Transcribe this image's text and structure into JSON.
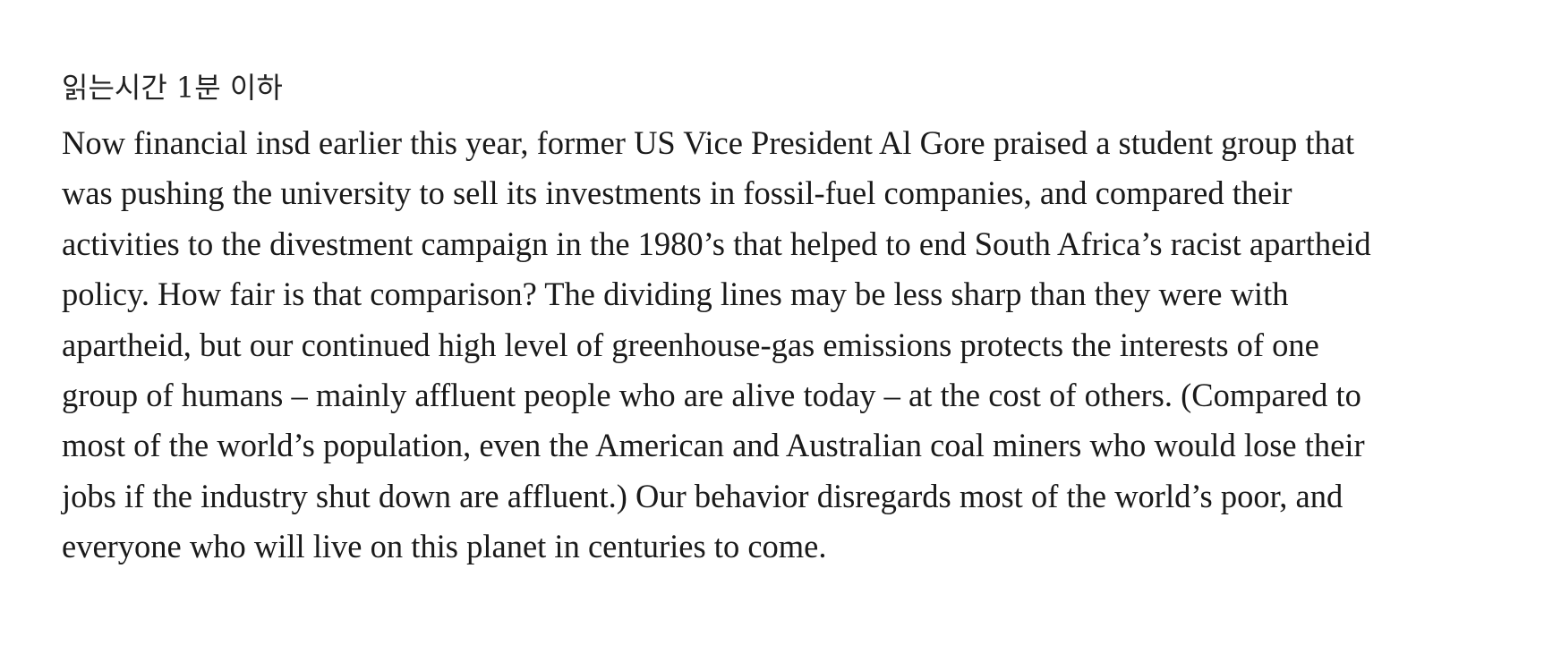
{
  "article": {
    "reading_time": "읽는시간 1분 이하",
    "lines": [
      "Now financial insd earlier this year, former US Vice President Al Gore praised a student group that",
      "was pushing the university to sell its investments in fossil-fuel companies, and compared their",
      "activities to the divestment campaign in the 1980’s that helped to end South Africa’s racist apartheid",
      "policy. How fair is that comparison? The dividing lines may be less sharp than they were with",
      "apartheid, but our continued high level of greenhouse-gas emissions protects the interests of one",
      "group of humans – mainly affluent people who are alive today – at the cost of others. (Compared to",
      "most of the world’s population, even the American and Australian coal miners who would lose their",
      "jobs if the industry shut down are affluent.) Our behavior disregards most of the world’s poor, and",
      "everyone who will live on this planet in centuries to come."
    ]
  }
}
